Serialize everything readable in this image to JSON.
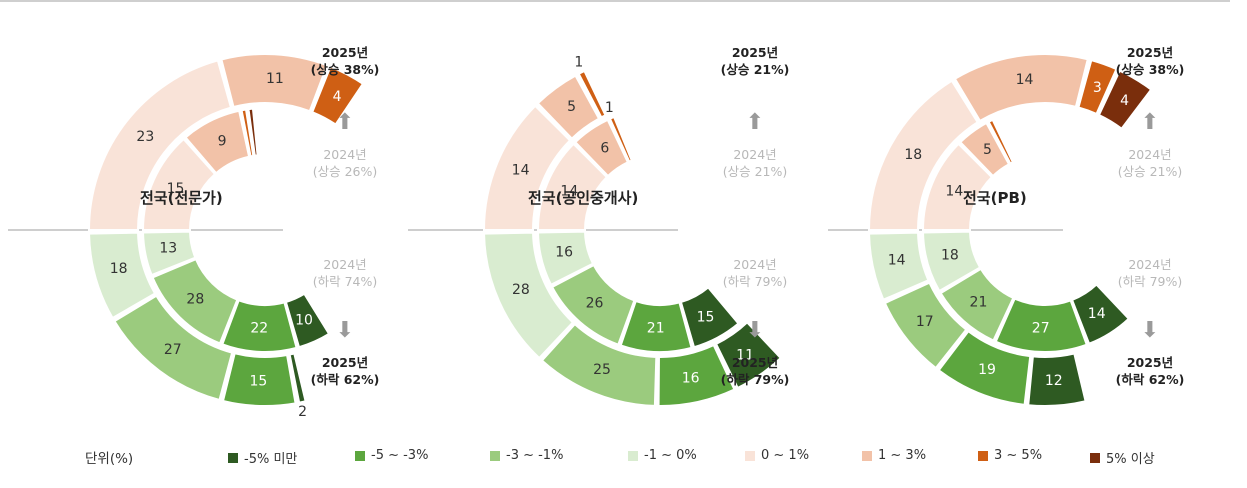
{
  "colors": {
    "lt_-5": "#2e5a22",
    "-5_-3": "#5ca63e",
    "-3_-1": "#9bcb7e",
    "-1_0": "#d9ecd0",
    "0_1": "#f9e3d8",
    "1_3": "#f2c2a8",
    "3_5": "#cf5f14",
    "gt_5": "#7a2e0c"
  },
  "unit_label": "단위(%)",
  "legend": [
    {
      "key": "lt_-5",
      "label": "-5% 미만"
    },
    {
      "key": "-5_-3",
      "label": "-5 ~ -3%"
    },
    {
      "key": "-3_-1",
      "label": "-3 ~ -1%"
    },
    {
      "key": "-1_0",
      "label": "-1 ~ 0%"
    },
    {
      "key": "0_1",
      "label": "0 ~ 1%"
    },
    {
      "key": "1_3",
      "label": "1 ~ 3%"
    },
    {
      "key": "3_5",
      "label": "3 ~ 5%"
    },
    {
      "key": "gt_5",
      "label": "5% 이상"
    }
  ],
  "chart_data": [
    {
      "type": "donut",
      "title": "전국(전문가)",
      "rings": [
        {
          "year": "2024년",
          "values": {
            "lt_-5": 10,
            "-5_-3": 22,
            "-3_-1": 28,
            "-1_0": 13,
            "0_1": 15,
            "1_3": 9,
            "3_5": 1,
            "gt_5": 1
          }
        },
        {
          "year": "2025년",
          "values": {
            "lt_-5": 2,
            "-5_-3": 15,
            "-3_-1": 27,
            "-1_0": 18,
            "0_1": 23,
            "1_3": 11,
            "3_5": 4,
            "gt_5": 0
          }
        }
      ],
      "annotations": {
        "top_2025": [
          "2025년",
          "(상승 38%)"
        ],
        "top_2024": [
          "2024년",
          "(상승 26%)"
        ],
        "bottom_2024": [
          "2024년",
          "(하락 74%)"
        ],
        "bottom_2025": [
          "2025년",
          "(하락 62%)"
        ]
      }
    },
    {
      "type": "donut",
      "title": "전국(공인중개사)",
      "rings": [
        {
          "year": "2024년",
          "values": {
            "lt_-5": 15,
            "-5_-3": 21,
            "-3_-1": 26,
            "-1_0": 16,
            "0_1": 14,
            "1_3": 6,
            "3_5": 1,
            "gt_5": 0
          }
        },
        {
          "year": "2025년",
          "values": {
            "lt_-5": 11,
            "-5_-3": 16,
            "-3_-1": 25,
            "-1_0": 28,
            "0_1": 14,
            "1_3": 5,
            "3_5": 1,
            "gt_5": 0
          }
        }
      ],
      "annotations": {
        "top_2025": [
          "2025년",
          "(상승 21%)"
        ],
        "top_2024": [
          "2024년",
          "(상승 21%)"
        ],
        "bottom_2024": [
          "2024년",
          "(하락 79%)"
        ],
        "bottom_2025": [
          "2025년",
          "(하락 79%)"
        ]
      }
    },
    {
      "type": "donut",
      "title": "전국(PB)",
      "rings": [
        {
          "year": "2024년",
          "values": {
            "lt_-5": 14,
            "-5_-3": 27,
            "-3_-1": 21,
            "-1_0": 18,
            "0_1": 14,
            "1_3": 5,
            "3_5": 1,
            "gt_5": 0
          }
        },
        {
          "year": "2025년",
          "values": {
            "lt_-5": 12,
            "-5_-3": 19,
            "-3_-1": 17,
            "-1_0": 14,
            "0_1": 18,
            "1_3": 14,
            "3_5": 3,
            "gt_5": 4
          }
        }
      ],
      "annotations": {
        "top_2025": [
          "2025년",
          "(상승 38%)"
        ],
        "top_2024": [
          "2024년",
          "(상승 21%)"
        ],
        "bottom_2024": [
          "2024년",
          "(하락 79%)"
        ],
        "bottom_2025": [
          "2025년",
          "(하락 62%)"
        ]
      }
    }
  ]
}
